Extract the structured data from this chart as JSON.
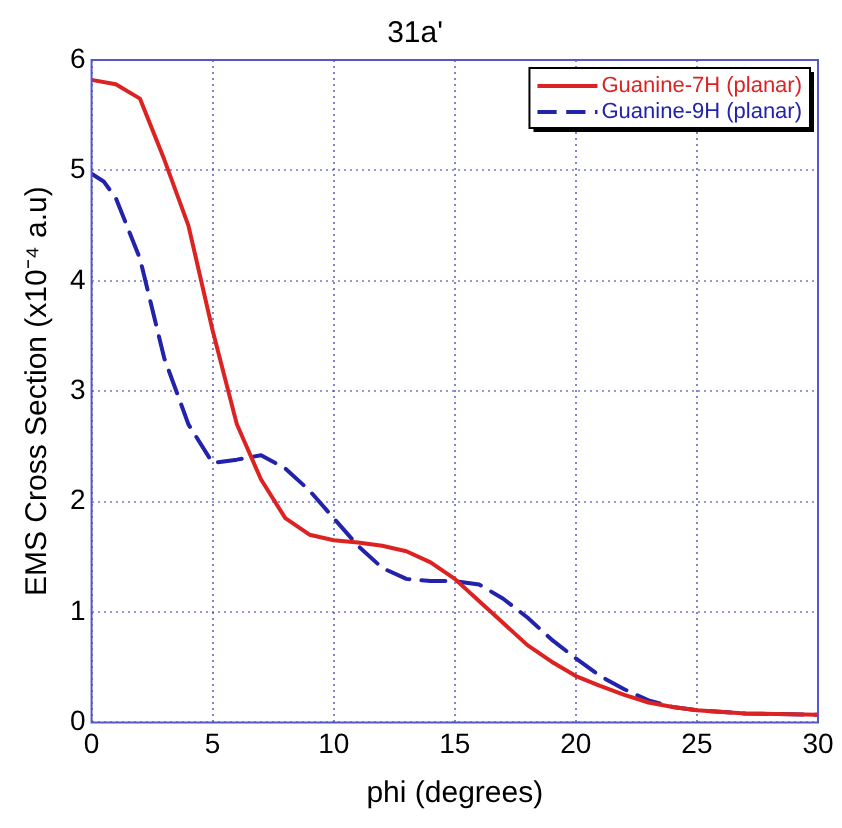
{
  "chart_data": {
    "type": "line",
    "title": "31a'",
    "xlabel": "phi (degrees)",
    "ylabel": "EMS Cross Section (x10⁻⁴ a.u)",
    "xlim": [
      0,
      30
    ],
    "xticks": [
      0,
      5,
      10,
      15,
      20,
      25,
      30
    ],
    "ylim": [
      0,
      6
    ],
    "yticks": [
      0,
      1,
      2,
      3,
      4,
      5,
      6
    ],
    "grid": true,
    "legend": "top right",
    "marker": "none",
    "series": [
      {
        "name": "Guanine-7H (planar)",
        "color": "#dd2222",
        "line_style": "solid",
        "x": [
          0,
          1,
          2,
          3,
          4,
          5,
          6,
          7,
          8,
          9,
          10,
          11,
          12,
          13,
          14,
          15,
          16,
          17,
          18,
          19,
          20,
          21,
          22,
          23,
          24,
          25,
          27,
          30
        ],
        "values": [
          5.82,
          5.78,
          5.65,
          5.1,
          4.5,
          3.55,
          2.7,
          2.2,
          1.85,
          1.7,
          1.65,
          1.63,
          1.6,
          1.55,
          1.45,
          1.3,
          1.1,
          0.9,
          0.7,
          0.55,
          0.42,
          0.33,
          0.25,
          0.18,
          0.14,
          0.11,
          0.08,
          0.07
        ]
      },
      {
        "name": "Guanine-9H (planar)",
        "color": "#2222aa",
        "line_style": "dashed",
        "x": [
          0,
          0.5,
          1,
          2,
          3,
          4,
          5,
          6,
          7,
          8,
          9,
          10,
          11,
          12,
          13,
          14,
          15,
          16,
          17,
          18,
          19,
          20,
          21,
          22,
          23,
          24,
          25,
          27,
          30
        ],
        "values": [
          4.97,
          4.9,
          4.75,
          4.2,
          3.3,
          2.7,
          2.35,
          2.38,
          2.42,
          2.3,
          2.1,
          1.85,
          1.6,
          1.4,
          1.3,
          1.28,
          1.28,
          1.25,
          1.12,
          0.95,
          0.75,
          0.58,
          0.42,
          0.3,
          0.2,
          0.14,
          0.11,
          0.08,
          0.07
        ]
      }
    ]
  }
}
